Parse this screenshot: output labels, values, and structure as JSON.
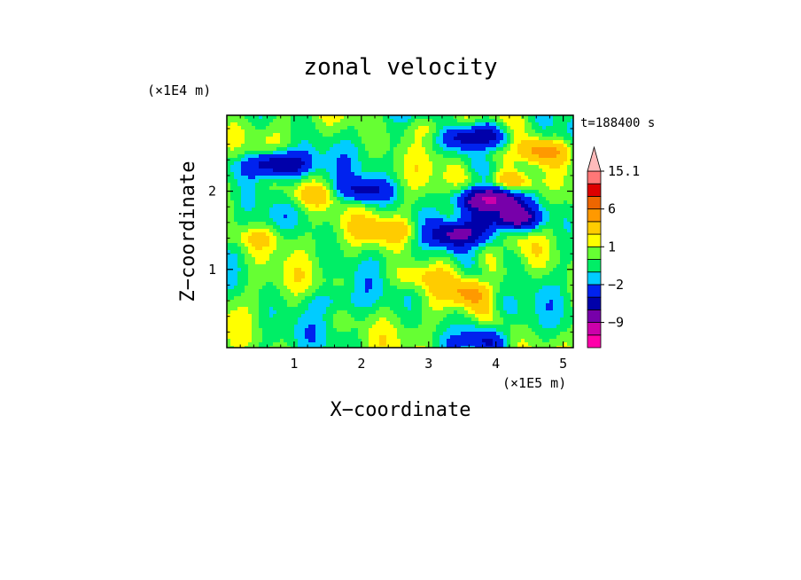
{
  "chart_data": {
    "type": "heatmap",
    "title": "zonal velocity",
    "xlabel": "X−coordinate",
    "ylabel": "Z−coordinate",
    "x_multiplier": "(×1E5 m)",
    "y_multiplier": "(×1E4 m)",
    "time_label": "t=188400 s",
    "xlim": [
      0,
      5.15
    ],
    "ylim": [
      0,
      2.97
    ],
    "x_ticks": [
      1,
      2,
      3,
      4,
      5
    ],
    "y_ticks": [
      1,
      2
    ],
    "x_tick_labels": [
      "1",
      "2",
      "3",
      "4",
      "5"
    ],
    "y_tick_labels": [
      "1",
      "2"
    ],
    "colorbar": {
      "levels": [
        -15,
        -12,
        -9,
        -6,
        -4,
        -2,
        -1,
        0,
        1,
        2,
        4,
        6,
        9,
        12,
        15.1
      ],
      "colors": [
        "#ff00aa",
        "#cc00aa",
        "#7700aa",
        "#0000aa",
        "#0022ee",
        "#00ccff",
        "#00ee66",
        "#66ff33",
        "#ffff00",
        "#ffcc00",
        "#ff9900",
        "#ee6600",
        "#dd0000",
        "#ff7777",
        "#ffbbbb"
      ],
      "labels": [
        {
          "value": 15.1,
          "text": "15.1"
        },
        {
          "value": 6,
          "text": "6"
        },
        {
          "value": 1,
          "text": "1"
        },
        {
          "value": -2,
          "text": "−2"
        },
        {
          "value": -9,
          "text": "−9"
        }
      ]
    },
    "field_features": [
      {
        "x": 0.8,
        "z": 2.35,
        "value": -7
      },
      {
        "x": 2.0,
        "z": 2.0,
        "value": -5
      },
      {
        "x": 3.45,
        "z": 1.45,
        "value": -6
      },
      {
        "x": 3.9,
        "z": 1.9,
        "value": -10
      },
      {
        "x": 4.25,
        "z": 1.65,
        "value": -8
      },
      {
        "x": 3.7,
        "z": 2.7,
        "value": -7
      },
      {
        "x": 4.7,
        "z": 2.5,
        "value": 5
      },
      {
        "x": 4.2,
        "z": 2.1,
        "value": 5
      },
      {
        "x": 3.6,
        "z": 0.7,
        "value": 3
      },
      {
        "x": 2.8,
        "z": 0.9,
        "value": 2
      },
      {
        "x": 1.3,
        "z": 1.95,
        "value": 3
      },
      {
        "x": 0.5,
        "z": 1.4,
        "value": 2
      },
      {
        "x": 3.0,
        "z": 2.8,
        "value": 2
      },
      {
        "x": 2.4,
        "z": 1.5,
        "value": 3
      },
      {
        "x": 1.6,
        "z": 0.6,
        "value": -1.5
      },
      {
        "x": 3.8,
        "z": 0.1,
        "value": -2.5
      },
      {
        "x": 0.3,
        "z": 2.3,
        "value": -1.5
      }
    ]
  }
}
